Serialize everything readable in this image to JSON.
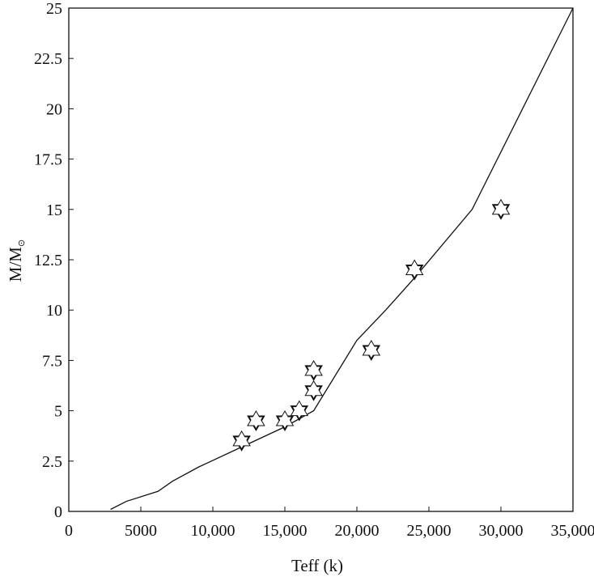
{
  "chart_data": {
    "type": "line",
    "title": "",
    "xlabel": "Teff (k)",
    "ylabel": "M/M",
    "ylabel_subscript": "⊙",
    "xlim": [
      0,
      35000
    ],
    "ylim": [
      0,
      25
    ],
    "grid": false,
    "xticks": [
      0,
      5000,
      10000,
      15000,
      20000,
      25000,
      30000,
      35000
    ],
    "xtick_labels": [
      "0",
      "5000",
      "10,000",
      "15,000",
      "20,000",
      "25,000",
      "30,000",
      "35,000"
    ],
    "yticks": [
      0,
      2.5,
      5,
      7.5,
      10,
      12.5,
      15,
      17.5,
      20,
      22.5,
      25
    ],
    "ytick_labels": [
      "0",
      "2.5",
      "5",
      "7.5",
      "10",
      "12.5",
      "15",
      "17.5",
      "20",
      "22.5",
      "25"
    ],
    "series": [
      {
        "type": "line",
        "color": "#111111",
        "x": [
          2900,
          4000,
          6200,
          7200,
          9000,
          12000,
          15000,
          17000,
          20000,
          22000,
          24000,
          28000,
          35000
        ],
        "y": [
          0.1,
          0.5,
          1.0,
          1.5,
          2.2,
          3.2,
          4.2,
          5.0,
          8.5,
          10.0,
          11.6,
          15.0,
          25.0
        ]
      },
      {
        "type": "scatter",
        "marker": "six-pointed-star",
        "color": "#111111",
        "x": [
          12000,
          13000,
          15000,
          16000,
          17000,
          17000,
          21000,
          24000,
          30000
        ],
        "y": [
          3.5,
          4.5,
          4.5,
          5.0,
          6.0,
          7.0,
          8.0,
          12.0,
          15.0
        ]
      }
    ]
  }
}
